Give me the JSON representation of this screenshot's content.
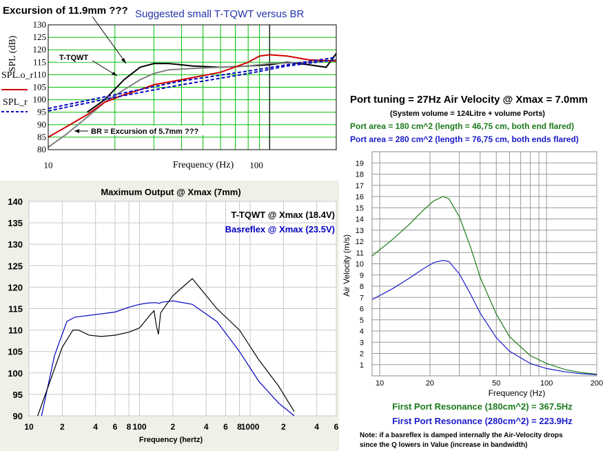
{
  "chart_data": [
    {
      "type": "line",
      "annotations": {
        "excursion_tqwt": "Excursion of 11.9mm ???",
        "title": "Suggested small T-TQWT versus BR",
        "tqwt_label": "T-TQWT",
        "br_label": "BR = Excursion of 5.7mm ???"
      },
      "ylabel": "SPL (dB)",
      "xlabel": "Frequency (Hz)",
      "legend": [
        {
          "label": "SPL.o_r",
          "color": "#000000"
        },
        {
          "label": "SPL_r",
          "color": "#d00000",
          "dash": "solid"
        },
        {
          "label": "",
          "color": "#0000c0",
          "dash": "dashed"
        }
      ],
      "x_scale": "log",
      "xlim": [
        10,
        200
      ],
      "ylim": [
        80,
        130
      ],
      "yticks": [
        80,
        85,
        90,
        95,
        100,
        105,
        110,
        115,
        120,
        125,
        130
      ],
      "xtick_labels": [
        "10",
        "100"
      ],
      "series": [
        {
          "color": "#000000",
          "x": [
            15,
            18,
            22,
            26,
            30,
            35,
            45,
            60,
            80,
            100,
            120,
            150,
            180,
            200
          ],
          "y": [
            95,
            100,
            108,
            113,
            114.5,
            114.5,
            113.5,
            113,
            113.5,
            114,
            115,
            114,
            113,
            118.5
          ]
        },
        {
          "color": "#808080",
          "x": [
            10,
            12,
            15,
            18,
            22,
            26,
            30,
            35,
            45,
            60,
            80,
            100,
            150,
            200
          ],
          "y": [
            81,
            86,
            93,
            99,
            104,
            108,
            110.5,
            112,
            112.5,
            113,
            113.5,
            114.5,
            115,
            116
          ]
        },
        {
          "color": "#d00000",
          "x": [
            10,
            12,
            15,
            18,
            22,
            26,
            30,
            40,
            60,
            80,
            90,
            100,
            120,
            150,
            200
          ],
          "y": [
            85,
            89,
            94,
            99,
            102,
            104,
            106,
            108,
            111,
            115,
            117.5,
            118,
            117.5,
            116,
            115.5
          ]
        },
        {
          "color": "#0000c0",
          "dash": true,
          "x": [
            10,
            20,
            40,
            80,
            120,
            200
          ],
          "y": [
            96.5,
            102,
            107.5,
            111.5,
            114,
            117
          ]
        },
        {
          "color": "#0000c0",
          "dash": true,
          "x": [
            10,
            20,
            40,
            80,
            120,
            200
          ],
          "y": [
            95.5,
            101,
            106,
            110.5,
            113.5,
            116
          ]
        }
      ]
    },
    {
      "type": "line",
      "title": "Maximum Output @ Xmax (7mm)",
      "xlabel": "Frequency (hertz)",
      "x_scale": "log",
      "xlim": [
        10,
        6000
      ],
      "ylim": [
        90,
        140
      ],
      "yticks": [
        90,
        95,
        100,
        105,
        110,
        115,
        120,
        125,
        130,
        135,
        140
      ],
      "xtick_labels": [
        "10",
        "2",
        "4",
        "6",
        "8",
        "100",
        "2",
        "4",
        "6",
        "8",
        "1000",
        "2",
        "4",
        "6"
      ],
      "legend": [
        {
          "label": "T-TQWT @ Xmax (18.4V)",
          "color": "#000000"
        },
        {
          "label": "Basreflex @ Xmax (23.5V)",
          "color": "#0000c0"
        }
      ],
      "series": [
        {
          "name": "Basreflex @ Xmax (23.5V)",
          "color": "#0000c0",
          "x": [
            13,
            17,
            22,
            26,
            30,
            40,
            60,
            80,
            100,
            120,
            140,
            150,
            160,
            200,
            300,
            500,
            800,
            1200,
            1800,
            2500
          ],
          "y": [
            90,
            104,
            112,
            113,
            113.2,
            113.6,
            114.2,
            115.3,
            116,
            116.3,
            116.4,
            116.2,
            116.5,
            116.8,
            116,
            112,
            105,
            98,
            93,
            90
          ]
        },
        {
          "name": "T-TQWT @ Xmax (18.4V)",
          "color": "#000000",
          "x": [
            12,
            15,
            20,
            25,
            28,
            35,
            45,
            60,
            80,
            100,
            120,
            135,
            142,
            148,
            155,
            200,
            300,
            500,
            800,
            1200,
            1800,
            2500
          ],
          "y": [
            90,
            97,
            106,
            110,
            110,
            108.8,
            108.5,
            108.8,
            109.5,
            110.5,
            113,
            114.5,
            111,
            109,
            114,
            118,
            122,
            115,
            110,
            103,
            97,
            91
          ]
        }
      ]
    },
    {
      "type": "line",
      "title": "Port tuning = 27Hz  Air Velocity @ Xmax = 7.0mm",
      "subtitle": "(System volume = 124Litre + volume Ports)",
      "legend": [
        {
          "label": "Port area = 180 cm^2 (length = 46,75 cm, both end flared)",
          "color": "#1a7a1a"
        },
        {
          "label": "Port area = 280 cm^2 (length = 76,75 cm, both ends flared)",
          "color": "#1a1acc"
        }
      ],
      "ylabel": "Air Velocity (m/s)",
      "xlabel": "Frequency (Hz)",
      "x_scale": "log",
      "xlim": [
        9,
        200
      ],
      "ylim": [
        0,
        20
      ],
      "yticks": [
        1,
        2,
        3,
        4,
        5,
        6,
        7,
        8,
        9,
        10,
        11,
        12,
        13,
        14,
        15,
        16,
        17,
        18,
        19
      ],
      "xticks": [
        10,
        20,
        50,
        100,
        200
      ],
      "series": [
        {
          "name": "180 cm^2",
          "color": "#1a7a1a",
          "x": [
            9,
            12,
            15,
            18,
            21,
            24,
            26,
            30,
            35,
            40,
            50,
            60,
            80,
            100,
            130,
            160,
            200
          ],
          "y": [
            10.7,
            12.2,
            13.5,
            14.7,
            15.6,
            16.0,
            15.8,
            14.2,
            11.5,
            8.8,
            5.5,
            3.5,
            1.8,
            1.1,
            0.55,
            0.3,
            0.15
          ]
        },
        {
          "name": "280 cm^2",
          "color": "#1a1acc",
          "x": [
            9,
            12,
            15,
            18,
            21,
            24,
            26,
            30,
            35,
            40,
            50,
            60,
            80,
            100,
            130,
            160,
            200
          ],
          "y": [
            6.8,
            7.8,
            8.7,
            9.5,
            10.1,
            10.3,
            10.2,
            9.1,
            7.3,
            5.6,
            3.4,
            2.2,
            1.1,
            0.65,
            0.35,
            0.2,
            0.1
          ]
        }
      ],
      "notes": {
        "res_green": "First Port Resonance (180cm^2) = 367.5Hz",
        "res_blue": "First Port Resonance (280cm^2) = 223.9Hz",
        "note1": "Note: if a basreflex is damped internally the Air-Velocity drops",
        "note2": "since the Q lowers in Value (increase in bandwidth)"
      }
    }
  ]
}
